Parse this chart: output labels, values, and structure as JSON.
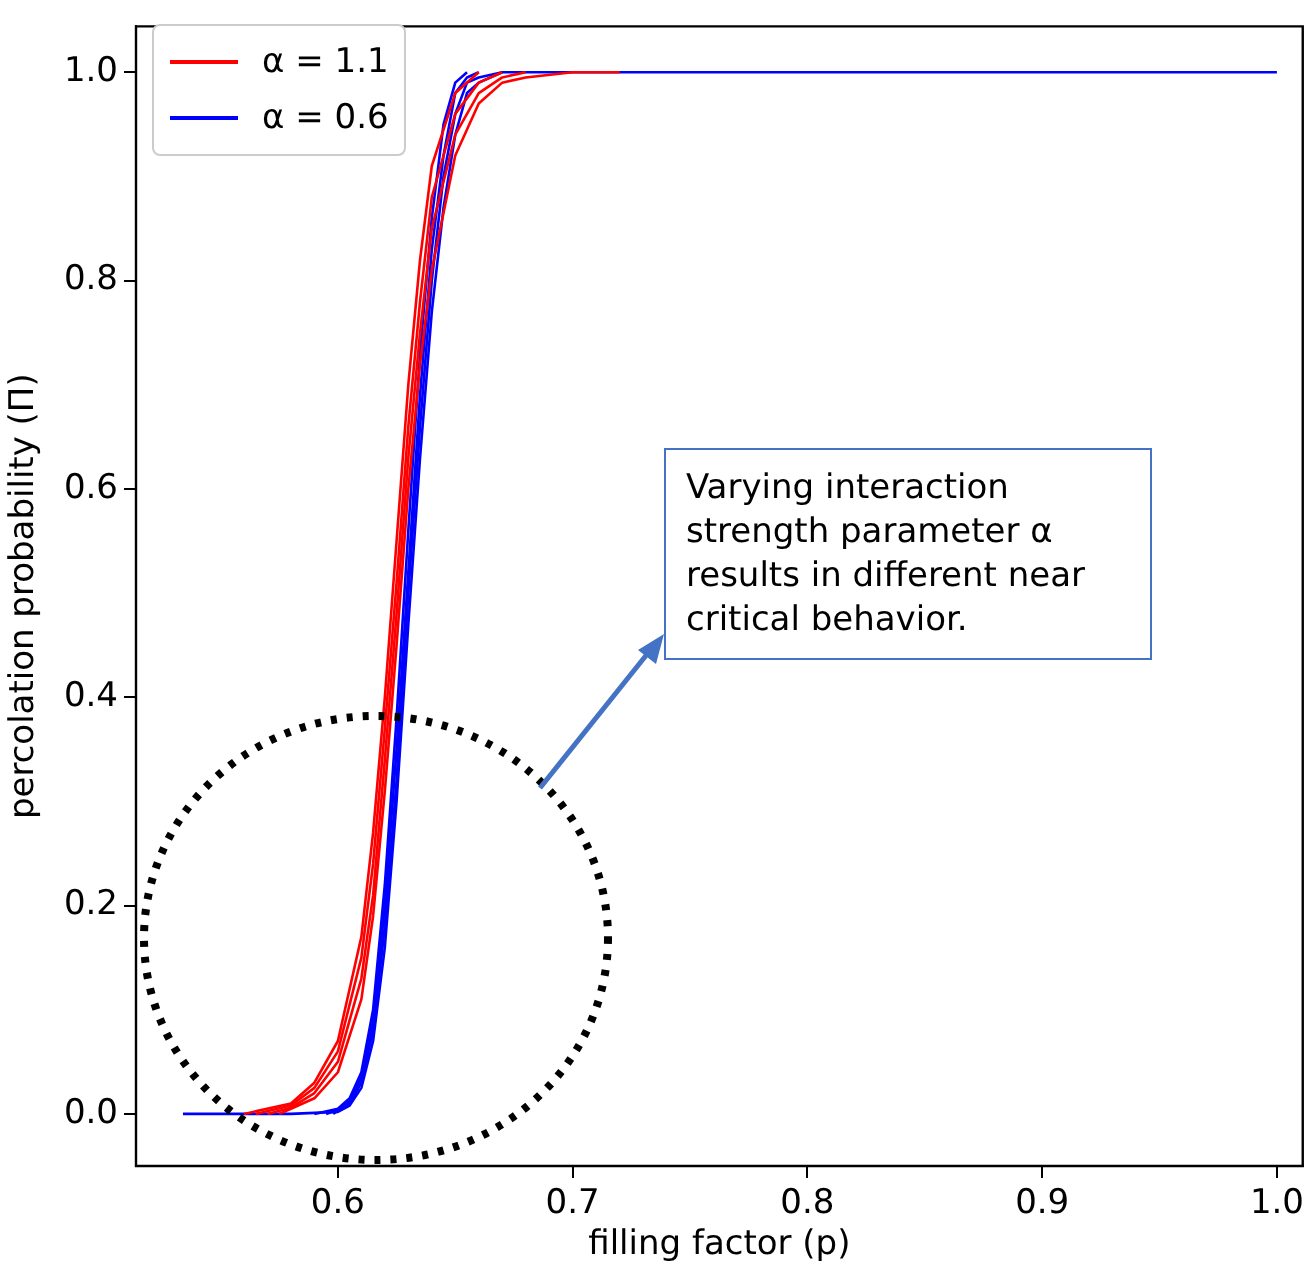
{
  "chart_data": {
    "type": "line",
    "xlabel": "filling factor (p)",
    "ylabel": "percolation probability (Π)",
    "xlim": [
      0.514,
      1.011
    ],
    "xticks": [
      {
        "value": 0.6,
        "label": "0.6"
      },
      {
        "value": 0.7,
        "label": "0.7"
      },
      {
        "value": 0.8,
        "label": "0.8"
      },
      {
        "value": 0.9,
        "label": "0.9"
      },
      {
        "value": 1.0,
        "label": "1.0"
      }
    ],
    "ylim": [
      -0.05,
      1.044
    ],
    "yticks": [
      {
        "value": 0,
        "label": "0.0"
      },
      {
        "value": 0.2,
        "label": "0.2"
      },
      {
        "value": 0.4,
        "label": "0.4"
      },
      {
        "value": 0.6,
        "label": "0.6"
      },
      {
        "value": 0.8,
        "label": "0.8"
      },
      {
        "value": 1.0,
        "label": "1.0"
      }
    ],
    "grid": false,
    "legend": "top left",
    "marker": "none",
    "line_style": "solid",
    "annotations": [
      "Varying interaction strength parameter α results in different near critical behavior."
    ],
    "series": [
      {
        "name": "α = 1.1",
        "color": "#ff0000",
        "x": [
          0.56,
          0.58,
          0.59,
          0.6,
          0.61,
          0.615,
          0.62,
          0.625,
          0.63,
          0.635,
          0.64,
          0.65,
          0.66
        ],
        "values": [
          0,
          0.01,
          0.03,
          0.07,
          0.17,
          0.27,
          0.4,
          0.55,
          0.7,
          0.82,
          0.91,
          0.98,
          1
        ]
      },
      {
        "color": "#ff0000",
        "x": [
          0.565,
          0.58,
          0.59,
          0.6,
          0.61,
          0.615,
          0.62,
          0.625,
          0.63,
          0.635,
          0.64,
          0.65,
          0.66,
          0.67
        ],
        "values": [
          0,
          0.008,
          0.025,
          0.06,
          0.15,
          0.24,
          0.37,
          0.51,
          0.66,
          0.78,
          0.88,
          0.96,
          0.99,
          1
        ]
      },
      {
        "color": "#ff0000",
        "x": [
          0.57,
          0.58,
          0.59,
          0.6,
          0.61,
          0.615,
          0.62,
          0.625,
          0.63,
          0.635,
          0.64,
          0.65,
          0.66,
          0.67,
          0.68
        ],
        "values": [
          0,
          0.006,
          0.02,
          0.05,
          0.13,
          0.21,
          0.34,
          0.48,
          0.63,
          0.75,
          0.85,
          0.94,
          0.98,
          0.995,
          1
        ]
      },
      {
        "color": "#ff0000",
        "x": [
          0.575,
          0.58,
          0.59,
          0.6,
          0.61,
          0.615,
          0.62,
          0.625,
          0.63,
          0.635,
          0.64,
          0.65,
          0.66,
          0.67,
          0.68,
          0.7,
          0.72
        ],
        "values": [
          0,
          0.005,
          0.015,
          0.04,
          0.11,
          0.19,
          0.31,
          0.45,
          0.6,
          0.72,
          0.81,
          0.92,
          0.97,
          0.99,
          0.995,
          1,
          1
        ]
      },
      {
        "name": "α = 0.6",
        "color": "#0000ff",
        "x": [
          0.59,
          0.6,
          0.605,
          0.61,
          0.615,
          0.62,
          0.625,
          0.63,
          0.635,
          0.64,
          0.645,
          0.65,
          0.655
        ],
        "values": [
          0,
          0.005,
          0.015,
          0.04,
          0.1,
          0.22,
          0.38,
          0.56,
          0.73,
          0.86,
          0.95,
          0.99,
          1
        ]
      },
      {
        "color": "#0000ff",
        "x": [
          0.595,
          0.6,
          0.605,
          0.61,
          0.615,
          0.62,
          0.625,
          0.63,
          0.635,
          0.64,
          0.645,
          0.65,
          0.655,
          0.66
        ],
        "values": [
          0,
          0.004,
          0.012,
          0.035,
          0.09,
          0.2,
          0.35,
          0.52,
          0.69,
          0.83,
          0.92,
          0.98,
          0.995,
          1
        ]
      },
      {
        "color": "#0000ff",
        "x": [
          0.598,
          0.6,
          0.605,
          0.61,
          0.615,
          0.62,
          0.625,
          0.63,
          0.635,
          0.64,
          0.645,
          0.65,
          0.655,
          0.66,
          0.67
        ],
        "values": [
          0,
          0.003,
          0.01,
          0.03,
          0.08,
          0.18,
          0.32,
          0.5,
          0.66,
          0.8,
          0.9,
          0.96,
          0.99,
          0.995,
          1
        ]
      },
      {
        "color": "#0000ff",
        "x": [
          0.534,
          0.58,
          0.6,
          0.605,
          0.61,
          0.615,
          0.62,
          0.625,
          0.63,
          0.635,
          0.64,
          0.645,
          0.65,
          0.655,
          0.66,
          0.67,
          1.0
        ],
        "values": [
          0,
          0,
          0.002,
          0.008,
          0.025,
          0.07,
          0.16,
          0.3,
          0.47,
          0.63,
          0.77,
          0.87,
          0.94,
          0.98,
          0.99,
          1,
          1
        ]
      }
    ]
  }
}
